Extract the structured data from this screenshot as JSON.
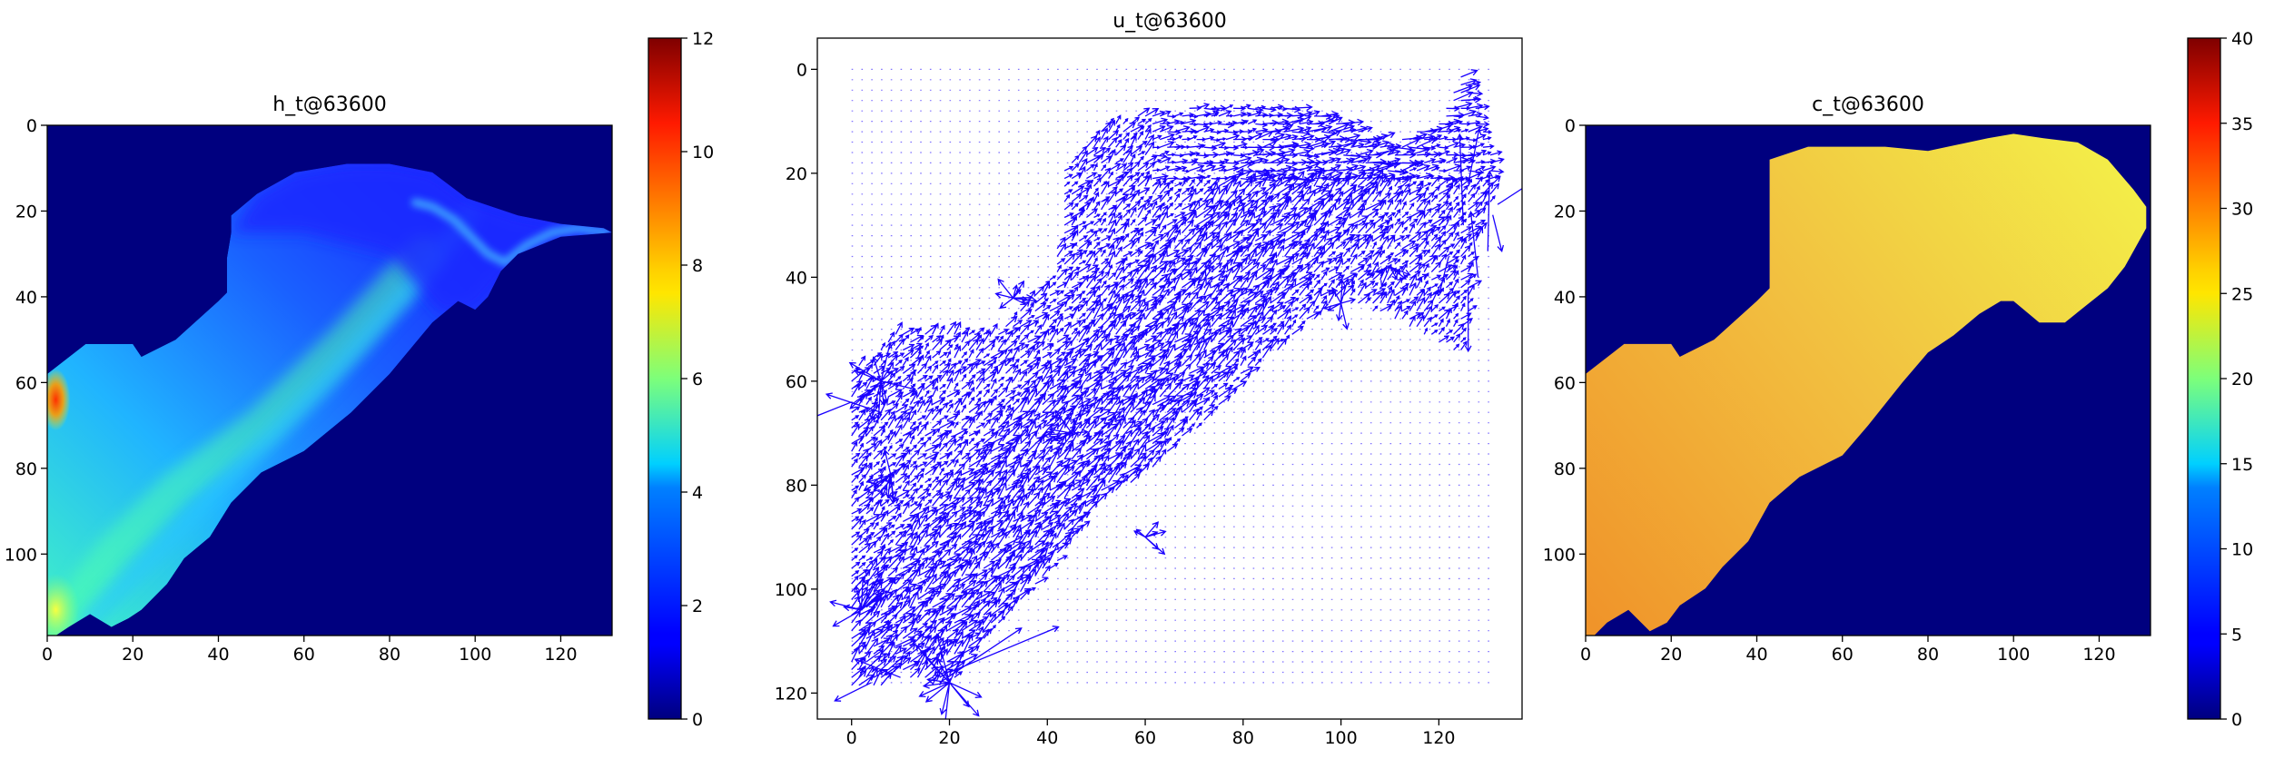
{
  "chart_data": [
    {
      "type": "heatmap",
      "title": "h_t@63600",
      "colormap": "jet",
      "background_color": "#00007f",
      "xlim": [
        0,
        132
      ],
      "ylim": [
        119,
        0
      ],
      "xticks": [
        0,
        20,
        40,
        60,
        80,
        100,
        120
      ],
      "yticks": [
        0,
        20,
        40,
        60,
        80,
        100
      ],
      "grid": false,
      "colorbar": {
        "position": "left",
        "range": [
          0,
          12
        ],
        "ticks": [
          0,
          2,
          4,
          6,
          8,
          10,
          12
        ]
      },
      "field": {
        "domain_polygon": [
          [
            0,
            119
          ],
          [
            0,
            58
          ],
          [
            9,
            51
          ],
          [
            20,
            51
          ],
          [
            22,
            54
          ],
          [
            30,
            50
          ],
          [
            40,
            41
          ],
          [
            42,
            39
          ],
          [
            42,
            31
          ],
          [
            43,
            25
          ],
          [
            43,
            21
          ],
          [
            49,
            16
          ],
          [
            58,
            11
          ],
          [
            70,
            9
          ],
          [
            80,
            9
          ],
          [
            90,
            11
          ],
          [
            98,
            17
          ],
          [
            110,
            21
          ],
          [
            120,
            23
          ],
          [
            130,
            24
          ],
          [
            132,
            25
          ],
          [
            120,
            26
          ],
          [
            110,
            30
          ],
          [
            106,
            34
          ],
          [
            103,
            40
          ],
          [
            100,
            43
          ],
          [
            96,
            41
          ],
          [
            90,
            46
          ],
          [
            80,
            58
          ],
          [
            71,
            67
          ],
          [
            60,
            76
          ],
          [
            50,
            81
          ],
          [
            43,
            88
          ],
          [
            38,
            96
          ],
          [
            32,
            101
          ],
          [
            28,
            107
          ],
          [
            22,
            113
          ],
          [
            19,
            115
          ],
          [
            15,
            117
          ],
          [
            10,
            114
          ],
          [
            5,
            117
          ],
          [
            2,
            119
          ]
        ],
        "channel_path": [
          [
            86,
            18
          ],
          [
            90,
            19
          ],
          [
            95,
            22
          ],
          [
            100,
            27
          ],
          [
            103,
            30
          ],
          [
            107,
            32
          ],
          [
            112,
            28
          ],
          [
            118,
            25
          ],
          [
            124,
            24
          ],
          [
            131,
            25
          ]
        ],
        "hotspot": {
          "x": 2,
          "y": 64,
          "value": 10.5
        },
        "typical_range": [
          1,
          6
        ]
      }
    },
    {
      "type": "vector_field",
      "title": "u_t@63600",
      "arrow_color": "#1a00ff",
      "xlim": [
        -7,
        137
      ],
      "ylim": [
        125,
        -6
      ],
      "xticks": [
        0,
        20,
        40,
        60,
        80,
        100,
        120
      ],
      "yticks": [
        0,
        20,
        40,
        60,
        80,
        100,
        120
      ],
      "grid_spacing": 1,
      "grid_extent": {
        "x": [
          0,
          131
        ],
        "y": [
          0,
          119
        ]
      },
      "grid": false
    },
    {
      "type": "heatmap",
      "title": "c_t@63600",
      "colormap": "jet",
      "background_color": "#00007f",
      "xlim": [
        0,
        132
      ],
      "ylim": [
        119,
        0
      ],
      "xticks": [
        0,
        20,
        40,
        60,
        80,
        100,
        120
      ],
      "yticks": [
        0,
        20,
        40,
        60,
        80,
        100
      ],
      "grid": false,
      "colorbar": {
        "position": "right",
        "range": [
          0,
          40
        ],
        "ticks": [
          0,
          5,
          10,
          15,
          20,
          25,
          30,
          35,
          40
        ]
      },
      "field": {
        "domain_polygon": [
          [
            0,
            119
          ],
          [
            0,
            58
          ],
          [
            9,
            51
          ],
          [
            20,
            51
          ],
          [
            22,
            54
          ],
          [
            30,
            50
          ],
          [
            40,
            41
          ],
          [
            43,
            38
          ],
          [
            43,
            28
          ],
          [
            43,
            8
          ],
          [
            52,
            5
          ],
          [
            70,
            5
          ],
          [
            80,
            6
          ],
          [
            94,
            3
          ],
          [
            100,
            2
          ],
          [
            107,
            3
          ],
          [
            115,
            4
          ],
          [
            122,
            8
          ],
          [
            128,
            15
          ],
          [
            131,
            19
          ],
          [
            131,
            24
          ],
          [
            126,
            33
          ],
          [
            122,
            38
          ],
          [
            112,
            46
          ],
          [
            106,
            46
          ],
          [
            100,
            41
          ],
          [
            97,
            41
          ],
          [
            92,
            44
          ],
          [
            86,
            49
          ],
          [
            80,
            53
          ],
          [
            74,
            60
          ],
          [
            66,
            70
          ],
          [
            60,
            77
          ],
          [
            50,
            82
          ],
          [
            43,
            88
          ],
          [
            38,
            97
          ],
          [
            32,
            103
          ],
          [
            28,
            108
          ],
          [
            22,
            112
          ],
          [
            19,
            116
          ],
          [
            15,
            118
          ],
          [
            10,
            113
          ],
          [
            5,
            116
          ],
          [
            2,
            119
          ]
        ],
        "value_low_left": 29.5,
        "value_high_right": 26.5
      }
    }
  ]
}
